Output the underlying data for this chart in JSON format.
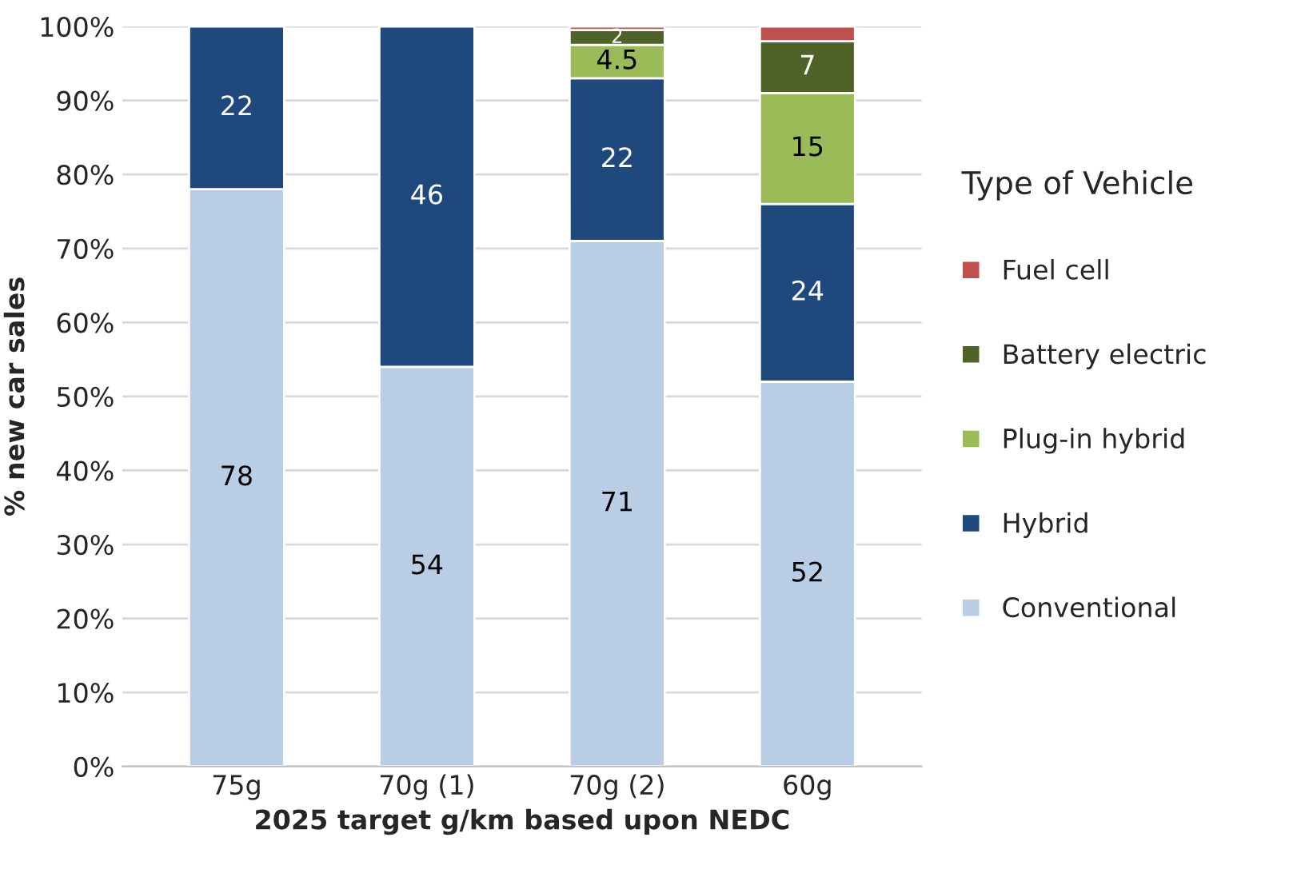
{
  "chart_data": {
    "type": "bar",
    "stacked": true,
    "xlabel": "2025 target g/km based upon NEDC",
    "ylabel": "% new car sales",
    "legend_title": "Type of Vehicle",
    "legend": "right",
    "grid": "y",
    "categories": [
      "75g",
      "70g (1)",
      "70g (2)",
      "60g"
    ],
    "series": [
      {
        "name": "Conventional",
        "color": "#b9cde5",
        "values": [
          78,
          54,
          71,
          52
        ],
        "value_labels": [
          "78",
          "54",
          "71",
          "52"
        ]
      },
      {
        "name": "Hybrid",
        "color": "#1f497d",
        "values": [
          22,
          46,
          22,
          24
        ],
        "value_labels": [
          "22",
          "46",
          "22",
          "24"
        ]
      },
      {
        "name": "Plug-in hybrid",
        "color": "#9bbb59",
        "values": [
          null,
          null,
          4.5,
          15
        ],
        "value_labels": [
          null,
          null,
          "4.5",
          "15"
        ]
      },
      {
        "name": "Battery electric",
        "color": "#4f6228",
        "values": [
          null,
          null,
          2,
          7
        ],
        "value_labels": [
          null,
          null,
          "2",
          "7"
        ]
      },
      {
        "name": "Fuel cell",
        "color": "#c0504d",
        "values": [
          null,
          null,
          0.5,
          2
        ],
        "value_labels": [
          null,
          null,
          null,
          null
        ]
      }
    ],
    "ylim": [
      0,
      100
    ],
    "yticks": [
      {
        "value": 0,
        "label": "0%"
      },
      {
        "value": 10,
        "label": "10%"
      },
      {
        "value": 20,
        "label": "20%"
      },
      {
        "value": 30,
        "label": "30%"
      },
      {
        "value": 40,
        "label": "40%"
      },
      {
        "value": 50,
        "label": "50%"
      },
      {
        "value": 60,
        "label": "60%"
      },
      {
        "value": 70,
        "label": "70%"
      },
      {
        "value": 80,
        "label": "80%"
      },
      {
        "value": 90,
        "label": "90%"
      },
      {
        "value": 100,
        "label": "100%"
      }
    ]
  }
}
